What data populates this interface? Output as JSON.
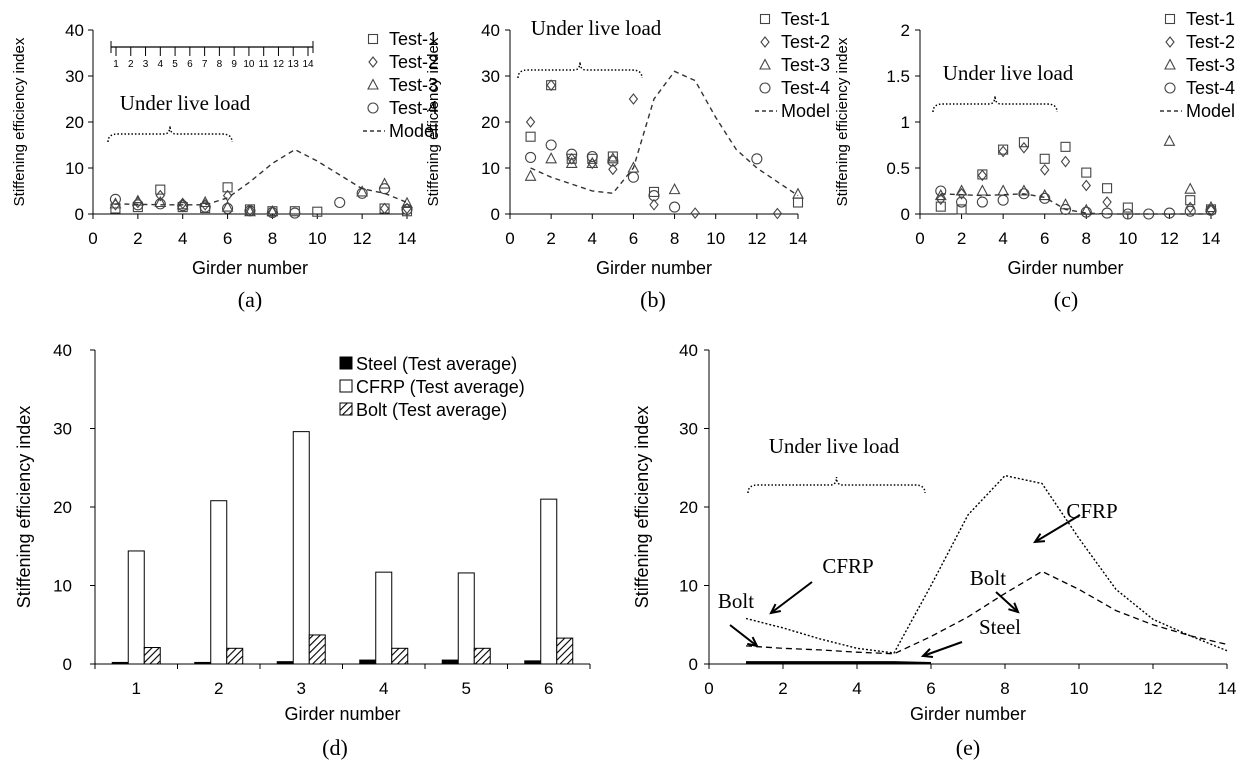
{
  "chart_data": [
    {
      "id": "a",
      "type": "scatter",
      "caption": "(a)",
      "xlabel": "Girder number",
      "ylabel": "Stiffening efficiency index",
      "xlim": [
        0,
        14
      ],
      "ylim": [
        0,
        40
      ],
      "xticks": [
        "0",
        "2",
        "4",
        "6",
        "8",
        "10",
        "12",
        "14"
      ],
      "yticks": [
        "0",
        "10",
        "20",
        "30",
        "40"
      ],
      "grid": false,
      "legend_position": "top-right",
      "annotation": "Under live load",
      "inset_girder_labels": [
        "1",
        "2",
        "3",
        "4",
        "5",
        "6",
        "7",
        "8",
        "9",
        "10",
        "11",
        "12",
        "13",
        "14"
      ],
      "series": [
        {
          "name": "Test-1",
          "marker": "square",
          "points": [
            [
              1,
              1.2
            ],
            [
              2,
              1.5
            ],
            [
              3,
              5.3
            ],
            [
              4,
              1.5
            ],
            [
              5,
              1.3
            ],
            [
              6,
              5.8
            ],
            [
              7,
              1.0
            ],
            [
              8,
              0.6
            ],
            [
              9,
              0.6
            ],
            [
              10,
              0.5
            ],
            [
              13,
              1.2
            ],
            [
              14,
              0.6
            ]
          ]
        },
        {
          "name": "Test-2",
          "marker": "diamond",
          "points": [
            [
              1,
              2.0
            ],
            [
              2,
              2.5
            ],
            [
              3,
              4.0
            ],
            [
              4,
              2.3
            ],
            [
              5,
              2.0
            ],
            [
              6,
              4.0
            ],
            [
              7,
              0.8
            ],
            [
              8,
              0.4
            ],
            [
              13,
              1.2
            ],
            [
              14,
              1.2
            ]
          ]
        },
        {
          "name": "Test-3",
          "marker": "triangle",
          "points": [
            [
              1,
              2.2
            ],
            [
              2,
              2.8
            ],
            [
              3,
              2.5
            ],
            [
              4,
              2.0
            ],
            [
              5,
              2.5
            ],
            [
              6,
              1.5
            ],
            [
              7,
              0.5
            ],
            [
              8,
              0.5
            ],
            [
              12,
              4.8
            ],
            [
              13,
              6.5
            ],
            [
              14,
              2.3
            ]
          ]
        },
        {
          "name": "Test-4",
          "marker": "circle",
          "points": [
            [
              1,
              3.2
            ],
            [
              2,
              2.0
            ],
            [
              3,
              2.2
            ],
            [
              4,
              1.8
            ],
            [
              5,
              1.5
            ],
            [
              6,
              1.2
            ],
            [
              7,
              0.7
            ],
            [
              8,
              0.3
            ],
            [
              9,
              0.2
            ],
            [
              11,
              2.5
            ],
            [
              12,
              4.5
            ],
            [
              13,
              5.5
            ],
            [
              14,
              1.0
            ]
          ]
        },
        {
          "name": "Model",
          "style": "dashed",
          "points": [
            [
              1,
              2.2
            ],
            [
              2,
              2.1
            ],
            [
              3,
              2.0
            ],
            [
              4,
              2.0
            ],
            [
              5,
              2.0
            ],
            [
              6,
              3.5
            ],
            [
              7,
              7.0
            ],
            [
              8,
              11.0
            ],
            [
              9,
              14.0
            ],
            [
              10,
              11.5
            ],
            [
              11,
              8.5
            ],
            [
              12,
              5.5
            ],
            [
              13,
              4.5
            ],
            [
              14,
              2.5
            ]
          ]
        }
      ]
    },
    {
      "id": "b",
      "type": "scatter",
      "caption": "(b)",
      "xlabel": "Girder number",
      "ylabel": "Stiffening efficiency index",
      "xlim": [
        0,
        14
      ],
      "ylim": [
        0,
        40
      ],
      "xticks": [
        "0",
        "2",
        "4",
        "6",
        "8",
        "10",
        "12",
        "14"
      ],
      "yticks": [
        "0",
        "10",
        "20",
        "30",
        "40"
      ],
      "grid": false,
      "legend_position": "top-right",
      "annotation": "Under live load",
      "series": [
        {
          "name": "Test-1",
          "marker": "square",
          "points": [
            [
              1,
              16.8
            ],
            [
              2,
              28.0
            ],
            [
              3,
              12.0
            ],
            [
              4,
              12.0
            ],
            [
              5,
              12.5
            ],
            [
              7,
              4.8
            ],
            [
              14,
              2.5
            ]
          ]
        },
        {
          "name": "Test-2",
          "marker": "diamond",
          "points": [
            [
              1,
              20.0
            ],
            [
              2,
              28.0
            ],
            [
              3,
              12.0
            ],
            [
              4,
              11.0
            ],
            [
              5,
              9.7
            ],
            [
              6,
              25.0
            ],
            [
              7,
              2.0
            ],
            [
              9,
              0.2
            ],
            [
              13,
              0.1
            ]
          ]
        },
        {
          "name": "Test-3",
          "marker": "triangle",
          "points": [
            [
              1,
              8.2
            ],
            [
              2,
              12.0
            ],
            [
              3,
              11.0
            ],
            [
              4,
              11.0
            ],
            [
              5,
              12.0
            ],
            [
              6,
              10.0
            ],
            [
              8,
              5.3
            ],
            [
              14,
              4.3
            ]
          ]
        },
        {
          "name": "Test-4",
          "marker": "circle",
          "points": [
            [
              1,
              12.3
            ],
            [
              2,
              15.0
            ],
            [
              3,
              13.0
            ],
            [
              4,
              12.5
            ],
            [
              5,
              11.5
            ],
            [
              6,
              8.0
            ],
            [
              7,
              4.0
            ],
            [
              8,
              1.5
            ],
            [
              12,
              12.0
            ]
          ]
        },
        {
          "name": "Model",
          "style": "dashed",
          "points": [
            [
              1,
              10.0
            ],
            [
              2,
              8.0
            ],
            [
              3,
              6.5
            ],
            [
              4,
              5.0
            ],
            [
              5,
              4.5
            ],
            [
              6,
              10.0
            ],
            [
              7,
              25.0
            ],
            [
              8,
              31.0
            ],
            [
              9,
              29.0
            ],
            [
              10,
              21.0
            ],
            [
              11,
              14.0
            ],
            [
              12,
              10.0
            ],
            [
              13,
              7.0
            ],
            [
              14,
              4.0
            ]
          ]
        }
      ]
    },
    {
      "id": "c",
      "type": "scatter",
      "caption": "(c)",
      "xlabel": "Girder number",
      "ylabel": "Stiffening efficiency index",
      "xlim": [
        0,
        14
      ],
      "ylim": [
        0,
        2
      ],
      "xticks": [
        "0",
        "2",
        "4",
        "6",
        "8",
        "10",
        "12",
        "14"
      ],
      "yticks": [
        "0",
        "0.5",
        "1",
        "1.5",
        "2"
      ],
      "grid": false,
      "legend_position": "top-right",
      "annotation": "Under live load",
      "series": [
        {
          "name": "Test-1",
          "marker": "square",
          "points": [
            [
              1,
              0.08
            ],
            [
              2,
              0.05
            ],
            [
              3,
              0.43
            ],
            [
              4,
              0.7
            ],
            [
              5,
              0.78
            ],
            [
              6,
              0.6
            ],
            [
              7,
              0.73
            ],
            [
              8,
              0.45
            ],
            [
              9,
              0.28
            ],
            [
              10,
              0.07
            ],
            [
              13,
              0.15
            ],
            [
              14,
              0.05
            ]
          ]
        },
        {
          "name": "Test-2",
          "marker": "diamond",
          "points": [
            [
              1,
              0.16
            ],
            [
              2,
              0.22
            ],
            [
              3,
              0.42
            ],
            [
              4,
              0.68
            ],
            [
              5,
              0.72
            ],
            [
              6,
              0.48
            ],
            [
              7,
              0.57
            ],
            [
              8,
              0.31
            ],
            [
              9,
              0.13
            ],
            [
              13,
              0.07
            ],
            [
              14,
              0.04
            ]
          ]
        },
        {
          "name": "Test-3",
          "marker": "triangle",
          "points": [
            [
              1,
              0.2
            ],
            [
              2,
              0.25
            ],
            [
              3,
              0.25
            ],
            [
              4,
              0.25
            ],
            [
              5,
              0.25
            ],
            [
              6,
              0.2
            ],
            [
              7,
              0.1
            ],
            [
              8,
              0.04
            ],
            [
              12,
              0.79
            ],
            [
              13,
              0.27
            ],
            [
              14,
              0.07
            ]
          ]
        },
        {
          "name": "Test-4",
          "marker": "circle",
          "points": [
            [
              1,
              0.25
            ],
            [
              2,
              0.13
            ],
            [
              3,
              0.13
            ],
            [
              4,
              0.15
            ],
            [
              5,
              0.22
            ],
            [
              6,
              0.17
            ],
            [
              7,
              0.05
            ],
            [
              8,
              0.02
            ],
            [
              9,
              0.01
            ],
            [
              10,
              0.0
            ],
            [
              11,
              0.0
            ],
            [
              12,
              0.01
            ],
            [
              13,
              0.03
            ],
            [
              14,
              0.04
            ]
          ]
        },
        {
          "name": "Model",
          "style": "dashed",
          "points": [
            [
              1,
              0.22
            ],
            [
              2,
              0.21
            ],
            [
              3,
              0.2
            ],
            [
              4,
              0.21
            ],
            [
              5,
              0.22
            ],
            [
              6,
              0.18
            ],
            [
              7,
              0.05
            ],
            [
              8,
              0.01
            ],
            [
              9,
              0.0
            ],
            [
              10,
              0.0
            ],
            [
              11,
              0.0
            ],
            [
              12,
              0.0
            ],
            [
              13,
              0.0
            ],
            [
              14,
              0.0
            ]
          ]
        }
      ]
    },
    {
      "id": "d",
      "type": "bar",
      "caption": "(d)",
      "xlabel": "Girder number",
      "ylabel": "Stiffening efficiency index",
      "categories": [
        "1",
        "2",
        "3",
        "4",
        "5",
        "6"
      ],
      "ylim": [
        0,
        40
      ],
      "yticks": [
        "0",
        "10",
        "20",
        "30",
        "40"
      ],
      "grid": false,
      "legend_position": "top-right",
      "series": [
        {
          "name": "Steel (Test average)",
          "fill": "solid",
          "values": [
            0.2,
            0.2,
            0.3,
            0.5,
            0.5,
            0.4
          ]
        },
        {
          "name": "CFRP (Test average)",
          "fill": "white",
          "values": [
            14.4,
            20.8,
            29.6,
            11.7,
            11.6,
            21.0
          ]
        },
        {
          "name": "Bolt (Test average)",
          "fill": "hatch",
          "values": [
            2.1,
            2.0,
            3.7,
            2.0,
            2.0,
            3.3
          ]
        }
      ]
    },
    {
      "id": "e",
      "type": "line",
      "caption": "(e)",
      "xlabel": "Girder number",
      "ylabel": "Stiffening efficiency index",
      "xlim": [
        0,
        14
      ],
      "ylim": [
        0,
        40
      ],
      "xticks": [
        "0",
        "2",
        "4",
        "6",
        "8",
        "10",
        "12",
        "14"
      ],
      "yticks": [
        "0",
        "10",
        "20",
        "30",
        "40"
      ],
      "grid": false,
      "annotation": "Under live load",
      "labels": [
        "CFRP",
        "Bolt",
        "CFRP",
        "Bolt",
        "Steel"
      ],
      "series": [
        {
          "name": "CFRP",
          "style": "dotted",
          "points": [
            [
              1,
              5.8
            ],
            [
              2,
              4.6
            ],
            [
              3,
              3.2
            ],
            [
              4,
              2.0
            ],
            [
              5,
              1.4
            ],
            [
              6,
              10.0
            ],
            [
              7,
              19.0
            ],
            [
              8,
              24.0
            ],
            [
              9,
              23.0
            ],
            [
              10,
              16.0
            ],
            [
              11,
              9.5
            ],
            [
              12,
              5.7
            ],
            [
              13,
              3.6
            ],
            [
              14,
              1.7
            ]
          ]
        },
        {
          "name": "Bolt",
          "style": "dashed",
          "points": [
            [
              1,
              2.3
            ],
            [
              2,
              2.0
            ],
            [
              3,
              1.8
            ],
            [
              4,
              1.5
            ],
            [
              5,
              1.3
            ],
            [
              6,
              3.5
            ],
            [
              7,
              6.0
            ],
            [
              8,
              9.0
            ],
            [
              9,
              11.8
            ],
            [
              10,
              9.5
            ],
            [
              11,
              6.8
            ],
            [
              12,
              5.0
            ],
            [
              13,
              3.6
            ],
            [
              14,
              2.5
            ]
          ]
        },
        {
          "name": "Steel",
          "style": "solid",
          "points": [
            [
              1,
              0.2
            ],
            [
              2,
              0.2
            ],
            [
              3,
              0.2
            ],
            [
              4,
              0.2
            ],
            [
              5,
              0.2
            ],
            [
              6,
              0.1
            ]
          ]
        }
      ]
    }
  ]
}
